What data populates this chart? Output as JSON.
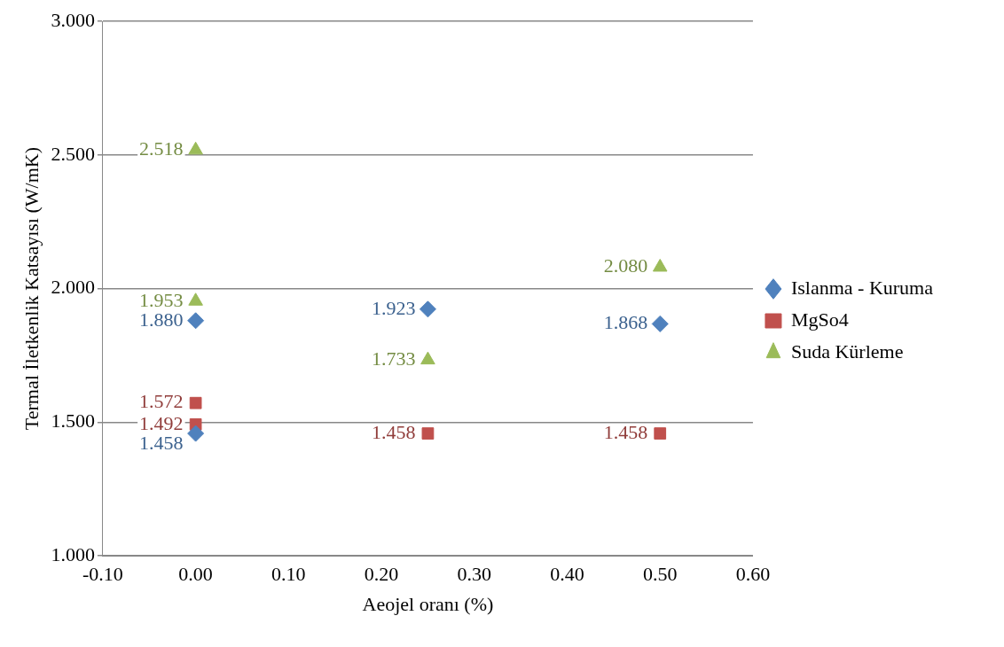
{
  "chart_data": {
    "type": "scatter",
    "xlabel": "Aeojel oranı (%)",
    "ylabel": "Termal İletkenlik Katsayısı (W/mK)",
    "xlim": [
      -0.1,
      0.6
    ],
    "xticks": [
      {
        "value": -0.1,
        "label": "-0.10"
      },
      {
        "value": 0,
        "label": "0.00"
      },
      {
        "value": 0.1,
        "label": "0.10"
      },
      {
        "value": 0.2,
        "label": "0.20"
      },
      {
        "value": 0.3,
        "label": "0.30"
      },
      {
        "value": 0.4,
        "label": "0.40"
      },
      {
        "value": 0.5,
        "label": "0.50"
      },
      {
        "value": 0.6,
        "label": "0.60"
      }
    ],
    "ylim": [
      1,
      3
    ],
    "yticks": [
      {
        "value": 1,
        "label": "1.000"
      },
      {
        "value": 1.5,
        "label": "1.500"
      },
      {
        "value": 2,
        "label": "2.000"
      },
      {
        "value": 2.5,
        "label": "2.500"
      },
      {
        "value": 3,
        "label": "3.000"
      }
    ],
    "grid": "y",
    "legend": "right",
    "series": [
      {
        "name": "Islanma - Kuruma",
        "color": "#4f81bd",
        "marker": "diamond",
        "x": [
          0,
          0,
          0.25,
          0.5
        ],
        "values": [
          1.88,
          1.458,
          1.923,
          1.868
        ],
        "value_labels": [
          "1.880",
          "1.458",
          "1.923",
          "1.868"
        ]
      },
      {
        "name": "MgSo4",
        "color": "#c0504d",
        "marker": "square",
        "x": [
          0,
          0,
          0.25,
          0.5
        ],
        "values": [
          1.572,
          1.492,
          1.458,
          1.458
        ],
        "value_labels": [
          "1.572",
          "1.492",
          "1.458",
          "1.458"
        ]
      },
      {
        "name": "Suda Kürleme",
        "color": "#9bbb59",
        "marker": "triangle",
        "x": [
          0,
          0,
          0.25,
          0.5
        ],
        "values": [
          2.518,
          1.953,
          1.733,
          2.08
        ],
        "value_labels": [
          "2.518",
          "1.953",
          "1.733",
          "2.080"
        ]
      }
    ]
  }
}
